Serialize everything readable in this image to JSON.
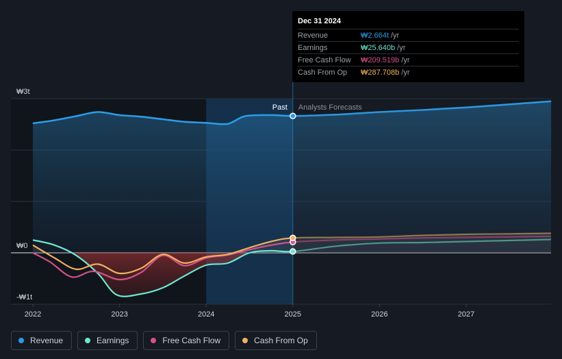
{
  "tooltip": {
    "date": "Dec 31 2024",
    "rows": [
      {
        "label": "Revenue",
        "value": "₩2.664t",
        "unit": "/yr",
        "color": "#2d9be6"
      },
      {
        "label": "Earnings",
        "value": "₩25.640b",
        "unit": "/yr",
        "color": "#6ee7d0"
      },
      {
        "label": "Free Cash Flow",
        "value": "₩209.519b",
        "unit": "/yr",
        "color": "#d6508a"
      },
      {
        "label": "Cash From Op",
        "value": "₩287.708b",
        "unit": "/yr",
        "color": "#f0b060"
      }
    ]
  },
  "labels": {
    "past": "Past",
    "forecast": "Analysts Forecasts"
  },
  "legend": [
    {
      "label": "Revenue",
      "color": "#2d9be6"
    },
    {
      "label": "Earnings",
      "color": "#6ee7d0"
    },
    {
      "label": "Free Cash Flow",
      "color": "#d6508a"
    },
    {
      "label": "Cash From Op",
      "color": "#f0b060"
    }
  ],
  "chart_data": {
    "type": "line",
    "y_unit": "trillion KRW",
    "ylim": [
      -1,
      3
    ],
    "y_ticks": [
      {
        "value": 3,
        "label": "₩3t"
      },
      {
        "value": 0,
        "label": "₩0"
      },
      {
        "value": -1,
        "label": "-₩1t"
      }
    ],
    "x_ticks": [
      "2022",
      "2023",
      "2024",
      "2025",
      "2026",
      "2027"
    ],
    "xlim": [
      2021.8,
      2027.98
    ],
    "past_end": 2025.0,
    "highlight_start": 2024.0,
    "series": [
      {
        "name": "Revenue",
        "color": "#2d9be6",
        "fill": true,
        "x": [
          2022.0,
          2022.25,
          2022.5,
          2022.75,
          2023.0,
          2023.25,
          2023.5,
          2023.75,
          2024.0,
          2024.25,
          2024.45,
          2024.75,
          2025.0,
          2025.5,
          2026.0,
          2026.5,
          2027.0,
          2027.5,
          2027.98
        ],
        "y": [
          2.52,
          2.58,
          2.66,
          2.74,
          2.68,
          2.65,
          2.6,
          2.55,
          2.53,
          2.51,
          2.66,
          2.68,
          2.664,
          2.69,
          2.74,
          2.78,
          2.83,
          2.89,
          2.95
        ]
      },
      {
        "name": "Earnings",
        "color": "#6ee7d0",
        "fill": false,
        "x": [
          2022.0,
          2022.25,
          2022.5,
          2022.75,
          2022.97,
          2023.25,
          2023.5,
          2023.75,
          2024.0,
          2024.25,
          2024.5,
          2024.75,
          2025.0,
          2025.5,
          2026.0,
          2026.5,
          2027.0,
          2027.5,
          2027.98
        ],
        "y": [
          0.25,
          0.15,
          -0.05,
          -0.4,
          -0.82,
          -0.8,
          -0.68,
          -0.45,
          -0.24,
          -0.2,
          0.0,
          0.04,
          0.026,
          0.13,
          0.19,
          0.2,
          0.22,
          0.24,
          0.26
        ]
      },
      {
        "name": "Free Cash Flow",
        "color": "#d6508a",
        "fill": false,
        "x": [
          2022.0,
          2022.2,
          2022.45,
          2022.7,
          2023.0,
          2023.25,
          2023.5,
          2023.75,
          2024.0,
          2024.25,
          2024.5,
          2024.75,
          2025.0,
          2025.5,
          2026.0,
          2026.5,
          2027.0,
          2027.5,
          2027.98
        ],
        "y": [
          0.0,
          -0.18,
          -0.47,
          -0.36,
          -0.52,
          -0.38,
          -0.05,
          -0.25,
          -0.1,
          -0.04,
          0.06,
          0.15,
          0.21,
          0.25,
          0.27,
          0.29,
          0.3,
          0.31,
          0.32
        ]
      },
      {
        "name": "Cash From Op",
        "color": "#f0b060",
        "fill": false,
        "x": [
          2022.0,
          2022.25,
          2022.5,
          2022.75,
          2023.0,
          2023.25,
          2023.5,
          2023.75,
          2024.0,
          2024.25,
          2024.5,
          2024.75,
          2025.0,
          2025.5,
          2026.0,
          2026.5,
          2027.0,
          2027.5,
          2027.98
        ],
        "y": [
          0.15,
          -0.1,
          -0.32,
          -0.22,
          -0.4,
          -0.3,
          -0.03,
          -0.2,
          -0.08,
          -0.03,
          0.1,
          0.22,
          0.29,
          0.3,
          0.31,
          0.34,
          0.36,
          0.37,
          0.38
        ]
      }
    ]
  }
}
